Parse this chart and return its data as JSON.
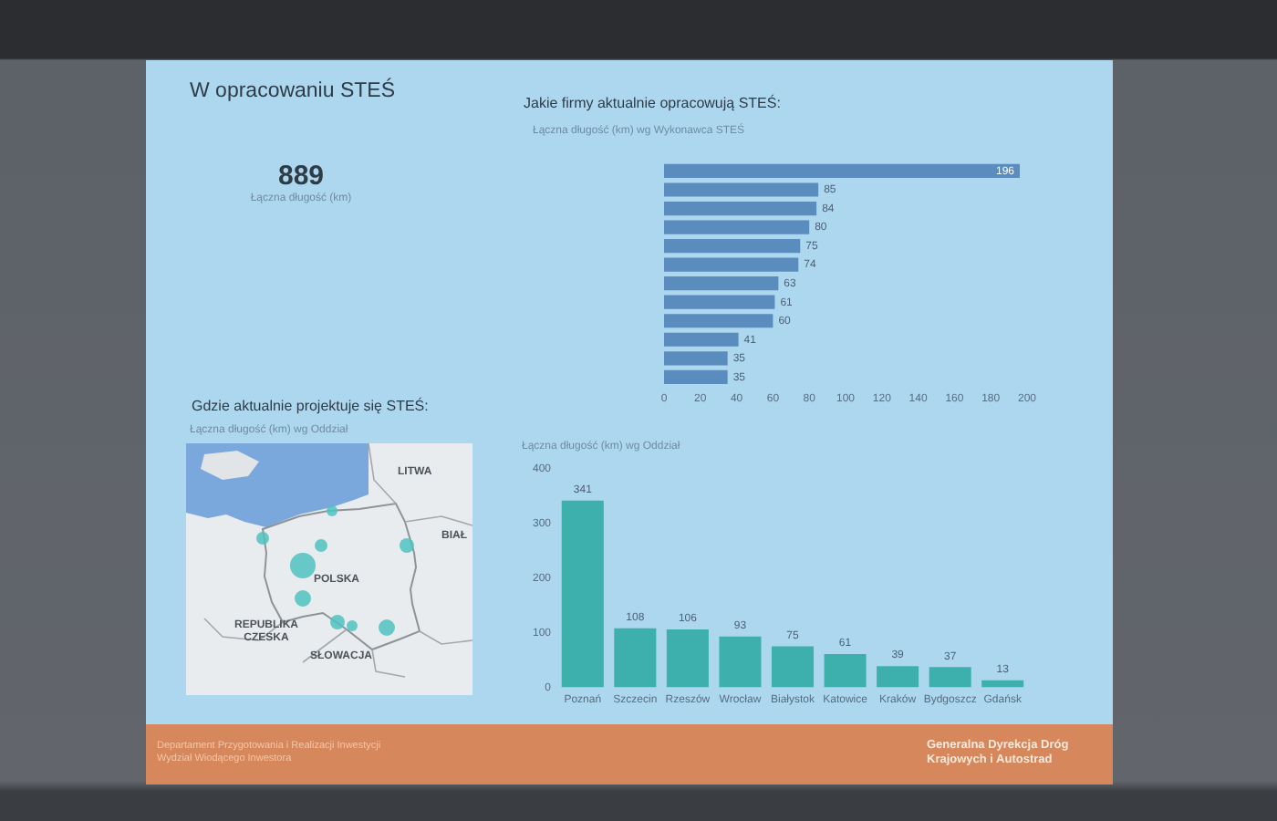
{
  "chart_data": [
    {
      "type": "other",
      "title": "W opracowaniu STEŚ",
      "categories": [
        "Łączna długość (km)"
      ],
      "values": [
        889
      ],
      "data_labels": true
    },
    {
      "type": "bar",
      "orientation": "horizontal",
      "title": "Jakie firmy aktualnie opracowują STEŚ:",
      "subtitle": "Łączna długość (km) wg Wykonawca STEŚ",
      "categories": [
        null,
        null,
        null,
        null,
        null,
        null,
        null,
        null,
        null,
        null,
        null,
        null
      ],
      "values": [
        196,
        85,
        84,
        80,
        75,
        74,
        63,
        61,
        60,
        41,
        35,
        35
      ],
      "color": "#5a8cbd",
      "xlim": [
        0,
        200
      ],
      "xticks": [
        0,
        20,
        40,
        60,
        80,
        100,
        120,
        140,
        160,
        180,
        200
      ],
      "data_labels": true
    },
    {
      "type": "other",
      "title": "Gdzie aktualnie projektuje się STEŚ:",
      "subtitle": "Łączna długość (km) wg Oddział",
      "annotations": [
        "LITWA",
        "BIAŁ",
        "POLSKA",
        "REPUBLIKA CZESKA",
        "SŁOWACJA"
      ]
    },
    {
      "type": "bar",
      "subtitle": "Łączna długość (km) wg Oddział",
      "categories": [
        "Poznań",
        "Szczecin",
        "Rzeszów",
        "Wrocław",
        "Białystok",
        "Katowice",
        "Kraków",
        "Bydgoszcz",
        "Gdańsk"
      ],
      "values": [
        341,
        108,
        106,
        93,
        75,
        61,
        39,
        37,
        13
      ],
      "color": "#3db0ad",
      "ylim": [
        0,
        400
      ],
      "yticks": [
        0,
        100,
        200,
        300,
        400
      ],
      "data_labels": true,
      "annotations": [
        "Departament Przygotowania i Realizacji Inwestycji Wydział Wiodącego Inwestora",
        "Generalna Dyrekcja Dróg Krajowych i Autostrad"
      ]
    }
  ]
}
